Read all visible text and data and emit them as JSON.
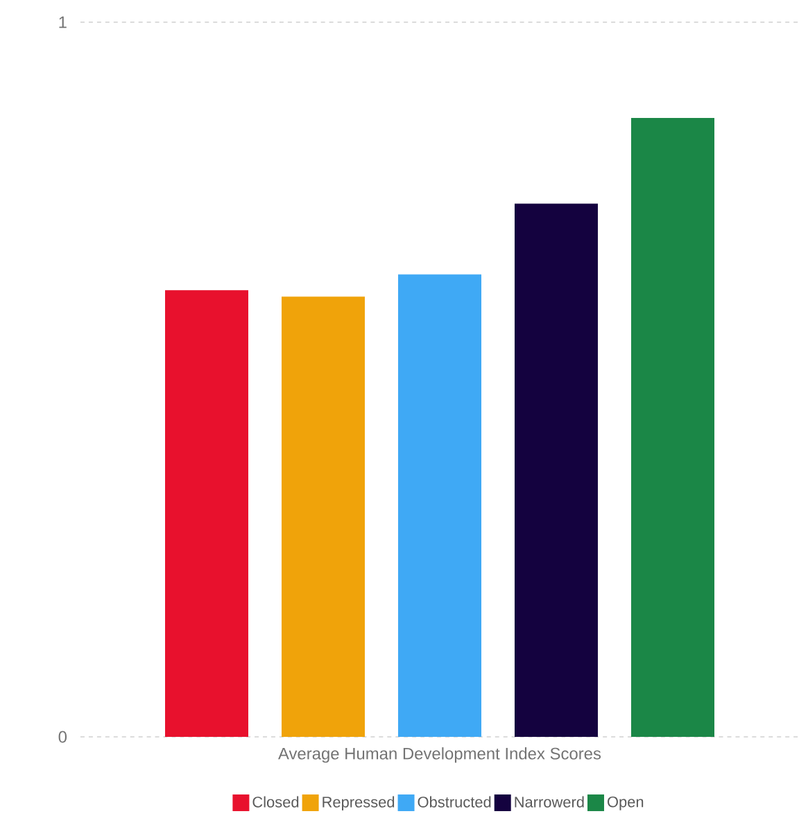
{
  "chart_data": {
    "type": "bar",
    "categories": [
      "Average Human Development Index Scores"
    ],
    "series": [
      {
        "name": "Closed",
        "color": "#e8112d",
        "values": [
          0.625
        ]
      },
      {
        "name": "Repressed",
        "color": "#f0a30a",
        "values": [
          0.616
        ]
      },
      {
        "name": "Obstructed",
        "color": "#3fa9f5",
        "values": [
          0.647
        ]
      },
      {
        "name": "Narrowerd",
        "color": "#14023f",
        "values": [
          0.746
        ]
      },
      {
        "name": "Open",
        "color": "#1b8747",
        "values": [
          0.866
        ]
      }
    ],
    "ylim": [
      0,
      1
    ],
    "yticks": [
      0,
      1
    ],
    "grid": "y",
    "legend": "bottom"
  }
}
